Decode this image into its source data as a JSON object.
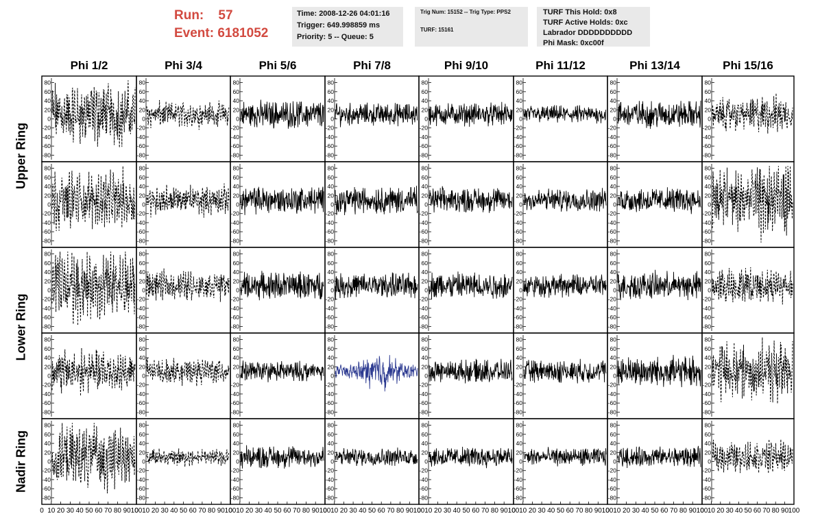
{
  "header": {
    "run_label": "Run:",
    "run_value": "57",
    "event_label": "Event:",
    "event_value": "6181052",
    "time_line": "Time: 2008-12-26 04:01:16",
    "trigger_line": "Trigger: 649.998859 ms",
    "priority_line": "Priority: 5 -- Queue: 5",
    "trig_line": "Trig Num: 15152 -- Trig Type: PPS2",
    "turf_line": "TURF: 15161",
    "turf_hold": "TURF This Hold: 0x8",
    "turf_active": "TURF Active Holds: 0xc",
    "labrador": "Labrador DDDDDDDDDD",
    "phi_mask": "Phi Mask: 0xc00f"
  },
  "chart_data": {
    "type": "line",
    "columns": [
      "Phi 1/2",
      "Phi 3/4",
      "Phi 5/6",
      "Phi 7/8",
      "Phi 9/10",
      "Phi 11/12",
      "Phi 13/14",
      "Phi 15/16"
    ],
    "row_groups": [
      {
        "label": "Upper Ring",
        "rows": [
          0,
          1
        ]
      },
      {
        "label": "Lower Ring",
        "rows": [
          2,
          3
        ]
      },
      {
        "label": "Nadir Ring",
        "rows": [
          4
        ]
      }
    ],
    "xlim": [
      0,
      100
    ],
    "ylim": [
      -90,
      90
    ],
    "x_ticks": [
      0,
      10,
      20,
      30,
      40,
      50,
      60,
      70,
      80,
      90,
      100
    ],
    "x_tick_labels_shown": "0 10 20 30 40 50 60 70 80 90 100",
    "y_ticks": [
      -80,
      -60,
      -40,
      -20,
      0,
      20,
      40,
      60,
      80
    ],
    "y_tick_labels": [
      "-80",
      "-60",
      "-40",
      "-20",
      "0",
      "20",
      "40",
      "60",
      "80"
    ],
    "highlight": {
      "row": 3,
      "col": 3,
      "color": "#2b3990"
    },
    "trace_color": "#000000",
    "panels": [
      [
        {
          "style": "dashed",
          "amplitude": 45
        },
        {
          "style": "dashed",
          "amplitude": 18
        },
        {
          "style": "solid",
          "amplitude": 22
        },
        {
          "style": "solid",
          "amplitude": 18
        },
        {
          "style": "solid",
          "amplitude": 18
        },
        {
          "style": "solid",
          "amplitude": 14
        },
        {
          "style": "solid",
          "amplitude": 22
        },
        {
          "style": "dashed",
          "amplitude": 25
        }
      ],
      [
        {
          "style": "dashed",
          "amplitude": 40
        },
        {
          "style": "dashed",
          "amplitude": 20
        },
        {
          "style": "solid",
          "amplitude": 22
        },
        {
          "style": "solid",
          "amplitude": 22
        },
        {
          "style": "solid",
          "amplitude": 20
        },
        {
          "style": "solid",
          "amplitude": 18
        },
        {
          "style": "solid",
          "amplitude": 20
        },
        {
          "style": "dashed",
          "amplitude": 50
        }
      ],
      [
        {
          "style": "dashed",
          "amplitude": 50
        },
        {
          "style": "dashed",
          "amplitude": 20
        },
        {
          "style": "solid",
          "amplitude": 22
        },
        {
          "style": "solid",
          "amplitude": 20
        },
        {
          "style": "solid",
          "amplitude": 22
        },
        {
          "style": "solid",
          "amplitude": 18
        },
        {
          "style": "solid",
          "amplitude": 22
        },
        {
          "style": "dashed",
          "amplitude": 25
        }
      ],
      [
        {
          "style": "dashed",
          "amplitude": 30
        },
        {
          "style": "dashed",
          "amplitude": 18
        },
        {
          "style": "solid",
          "amplitude": 16
        },
        {
          "style": "solid",
          "amplitude": 24
        },
        {
          "style": "solid",
          "amplitude": 18
        },
        {
          "style": "solid",
          "amplitude": 18
        },
        {
          "style": "solid",
          "amplitude": 24
        },
        {
          "style": "dashed",
          "amplitude": 40
        }
      ],
      [
        {
          "style": "dashed",
          "amplitude": 45
        },
        {
          "style": "dashed",
          "amplitude": 12
        },
        {
          "style": "solid",
          "amplitude": 18
        },
        {
          "style": "solid",
          "amplitude": 14
        },
        {
          "style": "solid",
          "amplitude": 16
        },
        {
          "style": "solid",
          "amplitude": 14
        },
        {
          "style": "solid",
          "amplitude": 16
        },
        {
          "style": "dashed",
          "amplitude": 22
        }
      ]
    ]
  }
}
